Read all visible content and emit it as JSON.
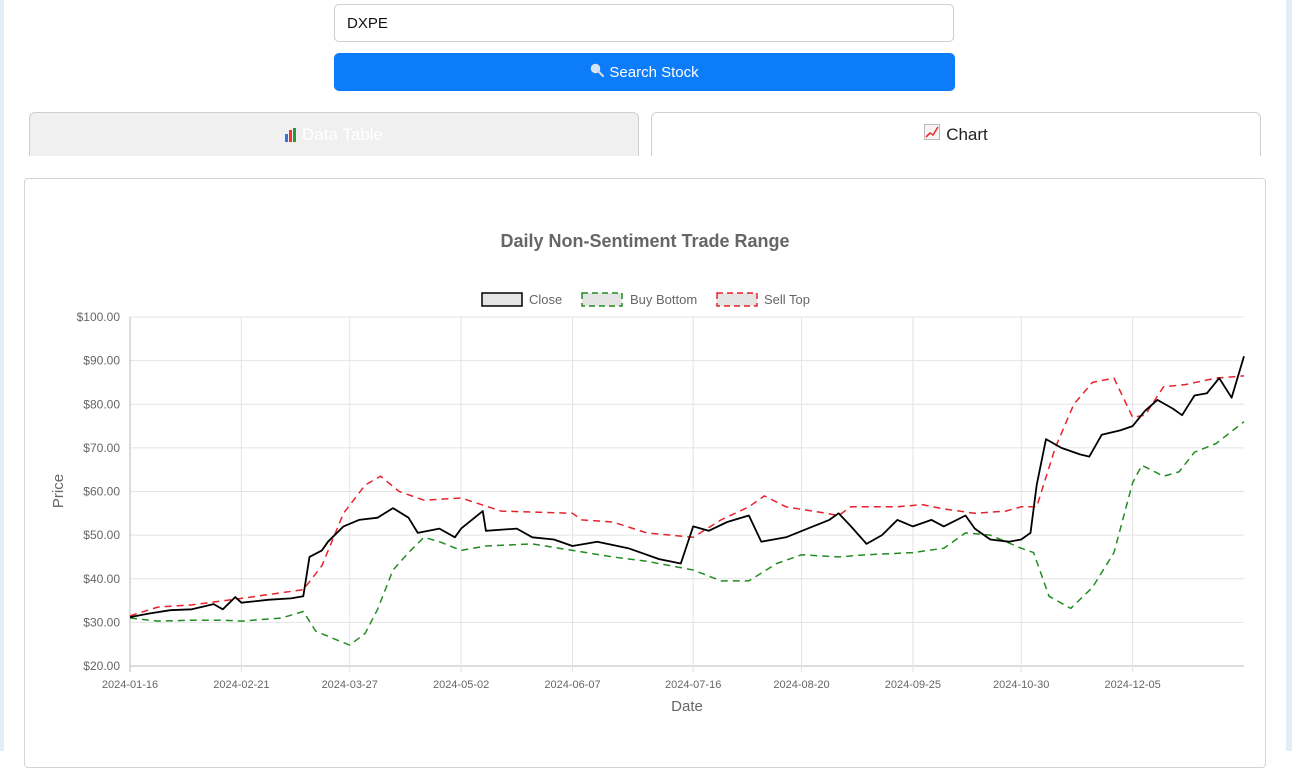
{
  "search": {
    "value": "DXPE",
    "button_label": "Search Stock",
    "button_icon": "magnifier-icon"
  },
  "tabs": [
    {
      "label": "Data Table",
      "icon": "bar-chart-icon"
    },
    {
      "label": "Chart",
      "icon": "line-chart-icon"
    }
  ],
  "colors": {
    "close": "#000000",
    "buy_bottom": "#228b22",
    "sell_top": "#e8222a",
    "button": "#0d7cfa"
  },
  "chart_data": {
    "type": "line",
    "title": "Daily Non-Sentiment Trade Range",
    "xlabel": "Date",
    "ylabel": "Price",
    "ylim": [
      20,
      100
    ],
    "y_ticks": [
      "$20.00",
      "$30.00",
      "$40.00",
      "$50.00",
      "$60.00",
      "$70.00",
      "$80.00",
      "$90.00",
      "$100.00"
    ],
    "x_ticks": [
      "2024-01-16",
      "2024-02-21",
      "2024-03-27",
      "2024-05-02",
      "2024-06-07",
      "2024-07-16",
      "2024-08-20",
      "2024-09-25",
      "2024-10-30",
      "2024-12-05"
    ],
    "x_range": [
      "2024-01-16",
      "2025-01-10"
    ],
    "legend_position": "top",
    "grid": true,
    "series": [
      {
        "name": "Close",
        "style": "solid",
        "points": [
          [
            "2024-01-16",
            31.2
          ],
          [
            "2024-01-22",
            32.0
          ],
          [
            "2024-01-29",
            32.8
          ],
          [
            "2024-02-05",
            33.0
          ],
          [
            "2024-02-12",
            34.2
          ],
          [
            "2024-02-15",
            33.0
          ],
          [
            "2024-02-19",
            35.8
          ],
          [
            "2024-02-21",
            34.5
          ],
          [
            "2024-03-01",
            35.2
          ],
          [
            "2024-03-08",
            35.5
          ],
          [
            "2024-03-12",
            36.0
          ],
          [
            "2024-03-14",
            45.0
          ],
          [
            "2024-03-18",
            46.5
          ],
          [
            "2024-03-20",
            48.5
          ],
          [
            "2024-03-25",
            52.0
          ],
          [
            "2024-03-30",
            53.5
          ],
          [
            "2024-04-05",
            54.0
          ],
          [
            "2024-04-10",
            56.2
          ],
          [
            "2024-04-15",
            54.0
          ],
          [
            "2024-04-18",
            50.5
          ],
          [
            "2024-04-25",
            51.5
          ],
          [
            "2024-04-30",
            49.5
          ],
          [
            "2024-05-02",
            51.5
          ],
          [
            "2024-05-09",
            55.5
          ],
          [
            "2024-05-10",
            51.0
          ],
          [
            "2024-05-20",
            51.5
          ],
          [
            "2024-05-25",
            49.5
          ],
          [
            "2024-06-01",
            49.0
          ],
          [
            "2024-06-07",
            47.5
          ],
          [
            "2024-06-15",
            48.5
          ],
          [
            "2024-06-25",
            47.0
          ],
          [
            "2024-07-05",
            44.5
          ],
          [
            "2024-07-12",
            43.5
          ],
          [
            "2024-07-16",
            52.0
          ],
          [
            "2024-07-21",
            51.0
          ],
          [
            "2024-07-27",
            53.0
          ],
          [
            "2024-08-03",
            54.5
          ],
          [
            "2024-08-07",
            48.5
          ],
          [
            "2024-08-15",
            49.5
          ],
          [
            "2024-08-22",
            51.5
          ],
          [
            "2024-08-29",
            53.5
          ],
          [
            "2024-09-01",
            55.0
          ],
          [
            "2024-09-05",
            52.0
          ],
          [
            "2024-09-10",
            48.0
          ],
          [
            "2024-09-15",
            50.0
          ],
          [
            "2024-09-20",
            53.5
          ],
          [
            "2024-09-25",
            52.0
          ],
          [
            "2024-10-01",
            53.5
          ],
          [
            "2024-10-05",
            52.0
          ],
          [
            "2024-10-12",
            54.5
          ],
          [
            "2024-10-15",
            51.5
          ],
          [
            "2024-10-20",
            49.0
          ],
          [
            "2024-10-26",
            48.5
          ],
          [
            "2024-10-30",
            49.0
          ],
          [
            "2024-11-02",
            50.5
          ],
          [
            "2024-11-04",
            61.5
          ],
          [
            "2024-11-07",
            72.0
          ],
          [
            "2024-11-12",
            70.0
          ],
          [
            "2024-11-18",
            68.5
          ],
          [
            "2024-11-21",
            68.0
          ],
          [
            "2024-11-25",
            73.0
          ],
          [
            "2024-12-01",
            74.0
          ],
          [
            "2024-12-05",
            75.0
          ],
          [
            "2024-12-09",
            78.5
          ],
          [
            "2024-12-13",
            81.0
          ],
          [
            "2024-12-18",
            79.0
          ],
          [
            "2024-12-21",
            77.5
          ],
          [
            "2024-12-25",
            82.0
          ],
          [
            "2024-12-29",
            82.5
          ],
          [
            "2025-01-02",
            86.0
          ],
          [
            "2025-01-06",
            81.5
          ],
          [
            "2025-01-10",
            91.0
          ]
        ]
      },
      {
        "name": "Buy Bottom",
        "style": "dashed",
        "points": [
          [
            "2024-01-16",
            31.0
          ],
          [
            "2024-01-25",
            30.3
          ],
          [
            "2024-02-05",
            30.5
          ],
          [
            "2024-02-15",
            30.5
          ],
          [
            "2024-02-21",
            30.3
          ],
          [
            "2024-03-05",
            31.0
          ],
          [
            "2024-03-12",
            32.5
          ],
          [
            "2024-03-16",
            28.0
          ],
          [
            "2024-03-21",
            26.5
          ],
          [
            "2024-03-27",
            24.8
          ],
          [
            "2024-04-01",
            27.5
          ],
          [
            "2024-04-05",
            33.0
          ],
          [
            "2024-04-10",
            42.0
          ],
          [
            "2024-04-15",
            46.0
          ],
          [
            "2024-04-20",
            49.5
          ],
          [
            "2024-04-25",
            48.5
          ],
          [
            "2024-05-02",
            46.5
          ],
          [
            "2024-05-10",
            47.5
          ],
          [
            "2024-05-25",
            48.0
          ],
          [
            "2024-06-07",
            46.5
          ],
          [
            "2024-06-20",
            45.0
          ],
          [
            "2024-07-01",
            44.0
          ],
          [
            "2024-07-16",
            42.0
          ],
          [
            "2024-07-25",
            39.5
          ],
          [
            "2024-08-03",
            39.5
          ],
          [
            "2024-08-12",
            43.5
          ],
          [
            "2024-08-20",
            45.5
          ],
          [
            "2024-09-01",
            45.0
          ],
          [
            "2024-09-10",
            45.5
          ],
          [
            "2024-09-25",
            46.0
          ],
          [
            "2024-10-05",
            47.0
          ],
          [
            "2024-10-12",
            50.5
          ],
          [
            "2024-10-20",
            50.0
          ],
          [
            "2024-10-30",
            47.0
          ],
          [
            "2024-11-03",
            46.0
          ],
          [
            "2024-11-08",
            36.0
          ],
          [
            "2024-11-15",
            33.2
          ],
          [
            "2024-11-22",
            38.0
          ],
          [
            "2024-11-29",
            46.0
          ],
          [
            "2024-12-05",
            62.0
          ],
          [
            "2024-12-08",
            66.0
          ],
          [
            "2024-12-15",
            63.5
          ],
          [
            "2024-12-20",
            64.5
          ],
          [
            "2024-12-25",
            69.0
          ],
          [
            "2025-01-01",
            71.0
          ],
          [
            "2025-01-10",
            76.0
          ]
        ]
      },
      {
        "name": "Sell Top",
        "style": "dashed",
        "points": [
          [
            "2024-01-16",
            31.5
          ],
          [
            "2024-01-25",
            33.5
          ],
          [
            "2024-02-05",
            34.0
          ],
          [
            "2024-02-21",
            35.5
          ],
          [
            "2024-03-05",
            36.8
          ],
          [
            "2024-03-12",
            37.5
          ],
          [
            "2024-03-18",
            43.0
          ],
          [
            "2024-03-25",
            55.0
          ],
          [
            "2024-04-01",
            61.5
          ],
          [
            "2024-04-06",
            63.5
          ],
          [
            "2024-04-12",
            60.0
          ],
          [
            "2024-04-20",
            58.0
          ],
          [
            "2024-05-02",
            58.5
          ],
          [
            "2024-05-15",
            55.5
          ],
          [
            "2024-06-07",
            55.0
          ],
          [
            "2024-06-10",
            53.5
          ],
          [
            "2024-06-20",
            53.0
          ],
          [
            "2024-07-01",
            50.5
          ],
          [
            "2024-07-16",
            49.5
          ],
          [
            "2024-07-25",
            53.5
          ],
          [
            "2024-08-03",
            56.5
          ],
          [
            "2024-08-08",
            59.0
          ],
          [
            "2024-08-15",
            56.5
          ],
          [
            "2024-08-28",
            55.0
          ],
          [
            "2024-09-01",
            54.5
          ],
          [
            "2024-09-05",
            56.5
          ],
          [
            "2024-09-20",
            56.5
          ],
          [
            "2024-09-28",
            57.0
          ],
          [
            "2024-10-05",
            56.0
          ],
          [
            "2024-10-15",
            55.0
          ],
          [
            "2024-10-25",
            55.5
          ],
          [
            "2024-10-30",
            56.5
          ],
          [
            "2024-11-04",
            56.5
          ],
          [
            "2024-11-10",
            70.0
          ],
          [
            "2024-11-16",
            80.0
          ],
          [
            "2024-11-22",
            85.0
          ],
          [
            "2024-11-29",
            86.0
          ],
          [
            "2024-12-05",
            77.0
          ],
          [
            "2024-12-09",
            77.5
          ],
          [
            "2024-12-15",
            84.0
          ],
          [
            "2024-12-22",
            84.5
          ],
          [
            "2025-01-01",
            86.0
          ],
          [
            "2025-01-10",
            86.5
          ]
        ]
      }
    ]
  }
}
